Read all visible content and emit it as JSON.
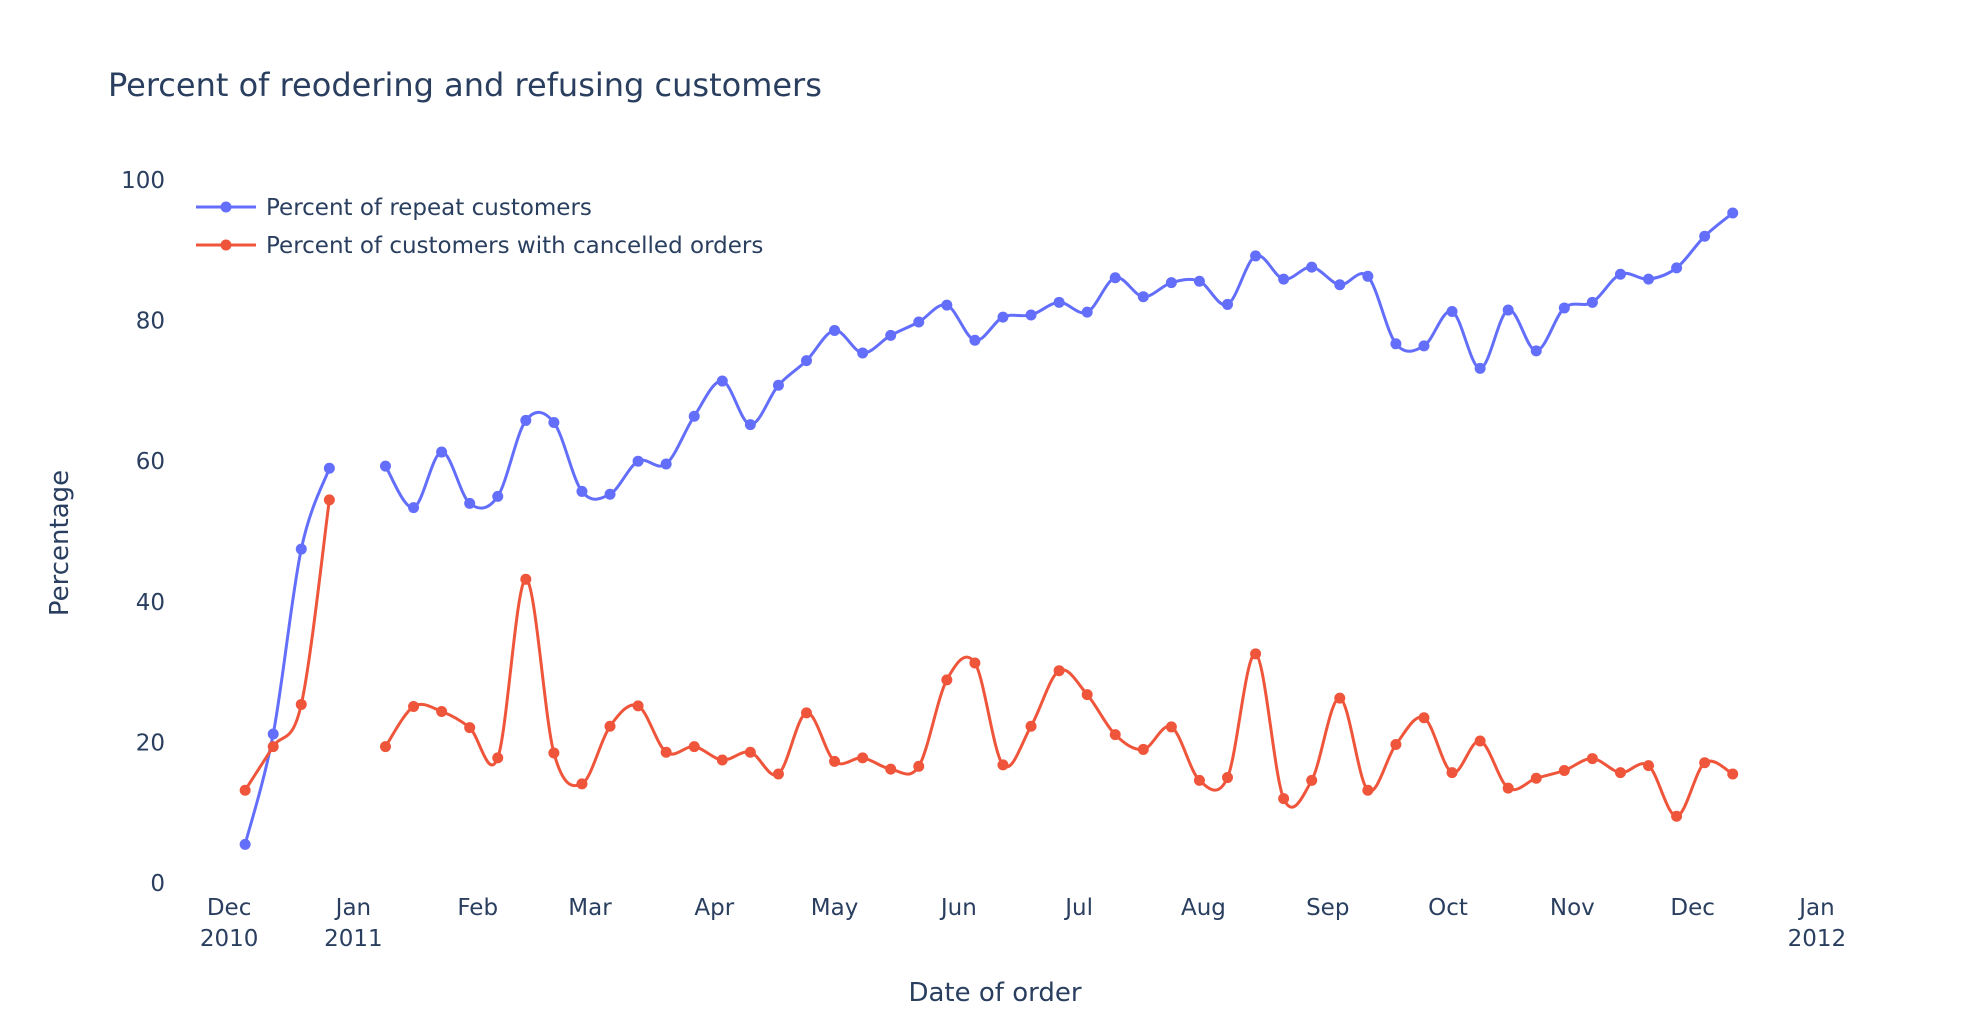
{
  "chart_data": {
    "type": "line",
    "title": "Percent of reodering and refusing customers",
    "xlabel": "Date of order",
    "ylabel": "Percentage",
    "ylim": [
      0,
      100
    ],
    "y_ticks": [
      0,
      20,
      40,
      60,
      80,
      100
    ],
    "xlim": [
      "2010-11-20",
      "2012-01-08"
    ],
    "x_ticks": [
      {
        "date": "2010-12-01",
        "label": "Dec",
        "sub": "2010"
      },
      {
        "date": "2011-01-01",
        "label": "Jan",
        "sub": "2011"
      },
      {
        "date": "2011-02-01",
        "label": "Feb",
        "sub": ""
      },
      {
        "date": "2011-03-01",
        "label": "Mar",
        "sub": ""
      },
      {
        "date": "2011-04-01",
        "label": "Apr",
        "sub": ""
      },
      {
        "date": "2011-05-01",
        "label": "May",
        "sub": ""
      },
      {
        "date": "2011-06-01",
        "label": "Jun",
        "sub": ""
      },
      {
        "date": "2011-07-01",
        "label": "Jul",
        "sub": ""
      },
      {
        "date": "2011-08-01",
        "label": "Aug",
        "sub": ""
      },
      {
        "date": "2011-09-01",
        "label": "Sep",
        "sub": ""
      },
      {
        "date": "2011-10-01",
        "label": "Oct",
        "sub": ""
      },
      {
        "date": "2011-11-01",
        "label": "Nov",
        "sub": ""
      },
      {
        "date": "2011-12-01",
        "label": "Dec",
        "sub": ""
      },
      {
        "date": "2012-01-01",
        "label": "Jan",
        "sub": "2012"
      }
    ],
    "x": [
      "2010-12-05",
      "2010-12-12",
      "2010-12-19",
      "2010-12-26",
      "2011-01-09",
      "2011-01-16",
      "2011-01-23",
      "2011-01-30",
      "2011-02-06",
      "2011-02-13",
      "2011-02-20",
      "2011-02-27",
      "2011-03-06",
      "2011-03-13",
      "2011-03-20",
      "2011-03-27",
      "2011-04-03",
      "2011-04-10",
      "2011-04-17",
      "2011-04-24",
      "2011-05-01",
      "2011-05-08",
      "2011-05-15",
      "2011-05-22",
      "2011-05-29",
      "2011-06-05",
      "2011-06-12",
      "2011-06-19",
      "2011-06-26",
      "2011-07-03",
      "2011-07-10",
      "2011-07-17",
      "2011-07-24",
      "2011-07-31",
      "2011-08-07",
      "2011-08-14",
      "2011-08-21",
      "2011-08-28",
      "2011-09-04",
      "2011-09-11",
      "2011-09-18",
      "2011-09-25",
      "2011-10-02",
      "2011-10-09",
      "2011-10-16",
      "2011-10-23",
      "2011-10-30",
      "2011-11-06",
      "2011-11-13",
      "2011-11-20",
      "2011-11-27",
      "2011-12-04",
      "2011-12-11"
    ],
    "series": [
      {
        "name": "Percent of repeat customers",
        "color": "#636efa",
        "segments": [
          [
            0,
            4
          ],
          [
            4,
            53
          ]
        ],
        "values": [
          5.5,
          21.2,
          47.5,
          59.0,
          59.3,
          53.4,
          61.3,
          54.0,
          55.0,
          65.8,
          65.5,
          55.7,
          55.3,
          60.0,
          59.6,
          66.4,
          71.4,
          65.2,
          70.8,
          74.3,
          78.6,
          75.4,
          77.9,
          79.8,
          82.2,
          77.2,
          80.5,
          80.8,
          82.6,
          81.2,
          86.1,
          83.4,
          85.4,
          85.6,
          82.3,
          89.2,
          85.9,
          87.6,
          85.1,
          86.3,
          76.7,
          76.4,
          81.3,
          73.2,
          81.5,
          75.7,
          81.8,
          82.6,
          86.6,
          85.9,
          87.5,
          92.0,
          95.3
        ]
      },
      {
        "name": "Percent of customers with cancelled orders",
        "color": "#ef553b",
        "segments": [
          [
            0,
            4
          ],
          [
            4,
            53
          ]
        ],
        "values": [
          13.2,
          19.4,
          25.4,
          54.5,
          19.4,
          25.1,
          24.4,
          22.1,
          17.8,
          43.2,
          18.5,
          14.1,
          22.3,
          25.2,
          18.6,
          19.4,
          17.5,
          18.6,
          15.5,
          24.2,
          17.3,
          17.8,
          16.2,
          16.6,
          28.9,
          31.3,
          16.8,
          22.3,
          30.2,
          26.8,
          21.1,
          19.0,
          22.2,
          14.6,
          15.0,
          32.6,
          12.0,
          14.6,
          26.3,
          13.2,
          19.7,
          23.5,
          15.7,
          20.2,
          13.5,
          14.9,
          16.0,
          17.7,
          15.7,
          16.7,
          9.5,
          17.1,
          15.5
        ]
      }
    ],
    "legend_position": "top-left",
    "grid": false
  }
}
